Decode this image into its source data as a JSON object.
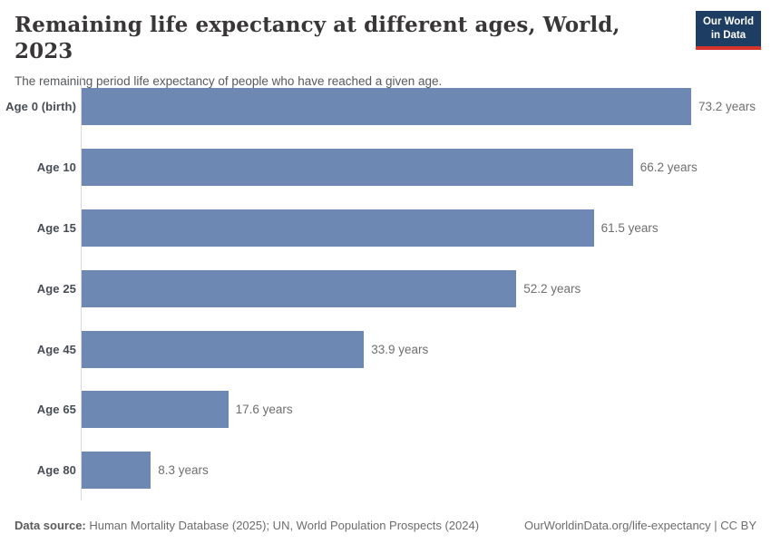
{
  "header": {
    "title": "Remaining life expectancy at different ages, World, 2023",
    "subtitle": "The remaining period life expectancy of people who have reached a given age.",
    "logo": {
      "line1": "Our World",
      "line2": "in Data"
    }
  },
  "chart_data": {
    "type": "bar",
    "orientation": "horizontal",
    "title": "Remaining life expectancy at different ages, World, 2023",
    "categories": [
      "Age 0 (birth)",
      "Age 10",
      "Age 15",
      "Age 25",
      "Age 45",
      "Age 65",
      "Age 80"
    ],
    "values": [
      73.2,
      66.2,
      61.5,
      52.2,
      33.9,
      17.6,
      8.3
    ],
    "value_labels": [
      "73.2 years",
      "66.2 years",
      "61.5 years",
      "52.2 years",
      "33.9 years",
      "17.6 years",
      "8.3 years"
    ],
    "unit": "years",
    "xlabel": "",
    "ylabel": "",
    "xlim": [
      0,
      80
    ],
    "grid": false,
    "legend": "none",
    "bar_color": "#6d88b2",
    "axis_line_color": "#d9d9d9"
  },
  "footer": {
    "data_source_label": "Data source:",
    "data_source_text": " Human Mortality Database (2025); UN, World Population Prospects (2024)",
    "attribution": "OurWorldinData.org/life-expectancy | CC BY"
  },
  "colors": {
    "bar": "#6d88b2",
    "logo_background": "#1d3d63",
    "logo_accent": "#d7352b",
    "title_text": "#383636"
  }
}
